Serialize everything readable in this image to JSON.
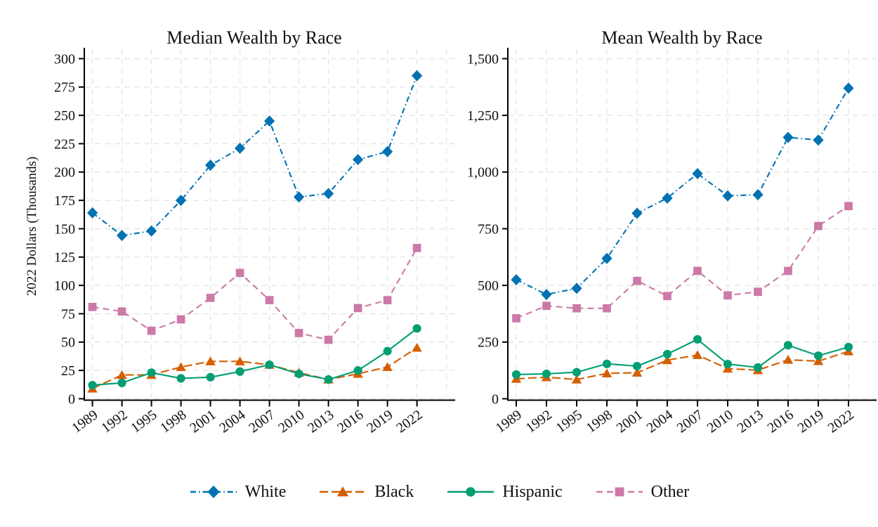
{
  "figure": {
    "background": "#ffffff",
    "text_color": "#111111"
  },
  "colors": {
    "white": "#0072B2",
    "black": "#D55E00",
    "hispanic": "#009E73",
    "other": "#CC79A7",
    "grid": "#e6e6e6",
    "axis": "#000000"
  },
  "chart_data": [
    {
      "type": "line",
      "title": "Median Wealth by Race",
      "ylabel": "2022 Dollars (Thousands)",
      "x": [
        "1989",
        "1992",
        "1995",
        "1998",
        "2001",
        "2004",
        "2007",
        "2010",
        "2013",
        "2016",
        "2019",
        "2022"
      ],
      "ylim": [
        0,
        300
      ],
      "yticks": [
        0,
        25,
        50,
        75,
        100,
        125,
        150,
        175,
        200,
        225,
        250,
        275,
        300
      ],
      "ytick_labels": [
        "0",
        "25",
        "50",
        "75",
        "100",
        "125",
        "150",
        "175",
        "200",
        "225",
        "250",
        "275",
        "300"
      ],
      "grid": true,
      "legend_position": "bottom",
      "series": [
        {
          "name": "White",
          "color_key": "white",
          "marker": "diamond",
          "dash": "dashdot",
          "values": [
            164,
            144,
            148,
            175,
            206,
            221,
            245,
            178,
            181,
            211,
            218,
            285
          ]
        },
        {
          "name": "Black",
          "color_key": "black",
          "marker": "triangle",
          "dash": "longdash",
          "values": [
            9,
            21,
            21,
            28,
            33,
            33,
            30,
            23,
            17,
            22,
            28,
            45
          ]
        },
        {
          "name": "Hispanic",
          "color_key": "hispanic",
          "marker": "circle",
          "dash": "solid",
          "values": [
            12,
            14,
            23,
            18,
            19,
            24,
            30,
            22,
            17,
            25,
            42,
            62
          ]
        },
        {
          "name": "Other",
          "color_key": "other",
          "marker": "square",
          "dash": "dash",
          "values": [
            81,
            77,
            60,
            70,
            89,
            111,
            87,
            58,
            52,
            80,
            87,
            133
          ]
        }
      ]
    },
    {
      "type": "line",
      "title": "Mean Wealth by Race",
      "ylabel": "",
      "x": [
        "1989",
        "1992",
        "1995",
        "1998",
        "2001",
        "2004",
        "2007",
        "2010",
        "2013",
        "2016",
        "2019",
        "2022"
      ],
      "ylim": [
        0,
        1500
      ],
      "yticks": [
        0,
        250,
        500,
        750,
        1000,
        1250,
        1500
      ],
      "ytick_labels": [
        "0",
        "250",
        "500",
        "750",
        "1,000",
        "1,250",
        "1,500"
      ],
      "grid": true,
      "legend_position": "bottom",
      "series": [
        {
          "name": "White",
          "color_key": "white",
          "marker": "diamond",
          "dash": "dashdot",
          "values": [
            525,
            460,
            487,
            619,
            818,
            885,
            993,
            895,
            900,
            1153,
            1141,
            1370
          ]
        },
        {
          "name": "Black",
          "color_key": "black",
          "marker": "triangle",
          "dash": "longdash",
          "values": [
            88,
            95,
            85,
            112,
            115,
            170,
            193,
            133,
            126,
            172,
            166,
            209
          ]
        },
        {
          "name": "Hispanic",
          "color_key": "hispanic",
          "marker": "circle",
          "dash": "solid",
          "values": [
            107,
            110,
            117,
            154,
            144,
            197,
            262,
            153,
            138,
            236,
            190,
            228
          ]
        },
        {
          "name": "Other",
          "color_key": "other",
          "marker": "square",
          "dash": "dash",
          "values": [
            355,
            410,
            399,
            399,
            520,
            453,
            564,
            456,
            472,
            564,
            762,
            850
          ]
        }
      ]
    }
  ],
  "legend": {
    "items": [
      {
        "label": "White",
        "color_key": "white",
        "marker": "diamond",
        "dash": "dashdot"
      },
      {
        "label": "Black",
        "color_key": "black",
        "marker": "triangle",
        "dash": "longdash"
      },
      {
        "label": "Hispanic",
        "color_key": "hispanic",
        "marker": "circle",
        "dash": "solid"
      },
      {
        "label": "Other",
        "color_key": "other",
        "marker": "square",
        "dash": "dash"
      }
    ]
  }
}
